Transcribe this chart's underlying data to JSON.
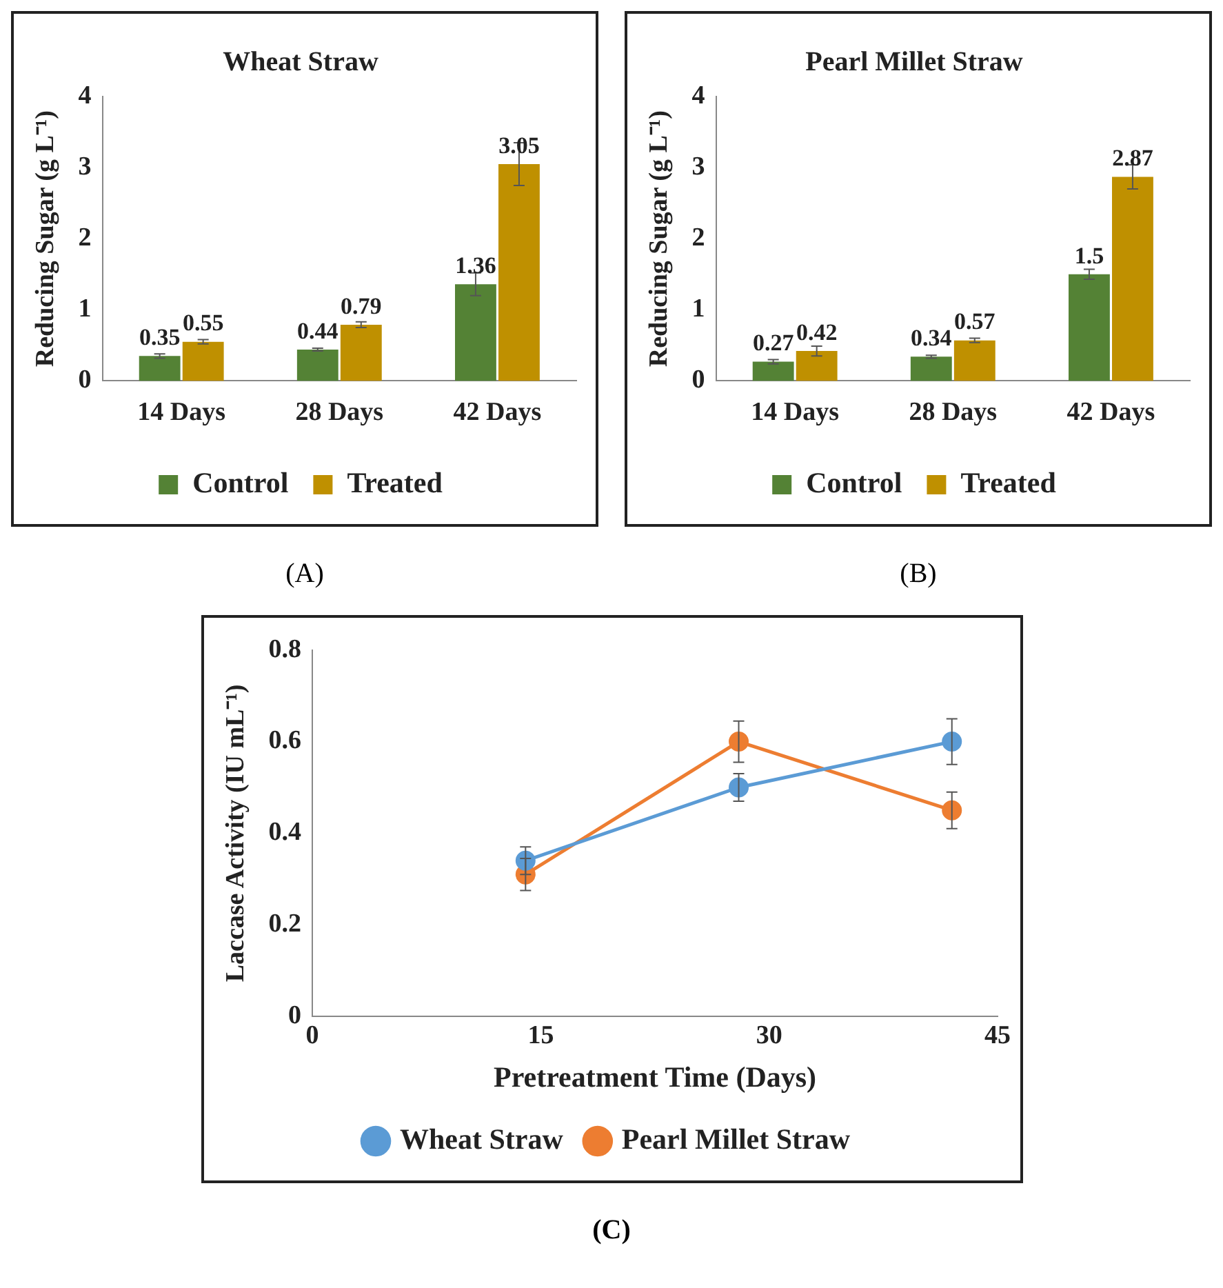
{
  "chart_data": [
    {
      "type": "bar",
      "title": "Wheat Straw",
      "ylabel": "Reducing Sugar (g L⁻¹)",
      "categories": [
        "14 Days",
        "28 Days",
        "42 Days"
      ],
      "series": [
        {
          "name": "Control",
          "color": "#548235",
          "values": [
            0.35,
            0.44,
            1.36
          ],
          "errors": [
            0.03,
            0.02,
            0.16
          ]
        },
        {
          "name": "Treated",
          "color": "#bf9000",
          "values": [
            0.55,
            0.79,
            3.05
          ],
          "errors": [
            0.03,
            0.04,
            0.3
          ]
        }
      ],
      "ylim": [
        0,
        4
      ],
      "yticks": [
        0,
        1,
        2,
        3,
        4
      ],
      "grid": false,
      "legend": "bottom",
      "data_labels": true,
      "annotations": [
        "(A)"
      ]
    },
    {
      "type": "bar",
      "title": "Pearl Millet Straw",
      "ylabel": "Reducing Sugar (g L⁻¹)",
      "categories": [
        "14 Days",
        "28 Days",
        "42 Days"
      ],
      "series": [
        {
          "name": "Control",
          "color": "#548235",
          "values": [
            0.27,
            0.34,
            1.5
          ],
          "errors": [
            0.03,
            0.02,
            0.07
          ]
        },
        {
          "name": "Treated",
          "color": "#bf9000",
          "values": [
            0.42,
            0.57,
            2.87
          ],
          "errors": [
            0.07,
            0.03,
            0.17
          ]
        }
      ],
      "ylim": [
        0,
        4
      ],
      "yticks": [
        0,
        1,
        2,
        3,
        4
      ],
      "grid": false,
      "legend": "bottom",
      "data_labels": true,
      "annotations": [
        "(B)"
      ]
    },
    {
      "type": "line",
      "xlabel": "Pretreatment Time (Days)",
      "ylabel": "Laccase Activity (IU mL⁻¹)",
      "x": [
        14,
        28,
        42
      ],
      "series": [
        {
          "name": "Wheat Straw",
          "color": "#5b9bd5",
          "values": [
            0.34,
            0.5,
            0.6
          ],
          "errors": [
            0.03,
            0.03,
            0.05
          ]
        },
        {
          "name": "Pearl Millet Straw",
          "color": "#ed7d31",
          "values": [
            0.31,
            0.6,
            0.45
          ],
          "errors": [
            0.035,
            0.045,
            0.04
          ]
        }
      ],
      "xlim": [
        0,
        45
      ],
      "xticks": [
        0,
        15,
        30,
        45
      ],
      "ylim": [
        0,
        0.8
      ],
      "yticks": [
        0,
        0.2,
        0.4,
        0.6,
        0.8
      ],
      "grid": false,
      "legend": "bottom",
      "marker": "circle",
      "line_style": "solid",
      "annotations": [
        "(C)"
      ]
    }
  ]
}
